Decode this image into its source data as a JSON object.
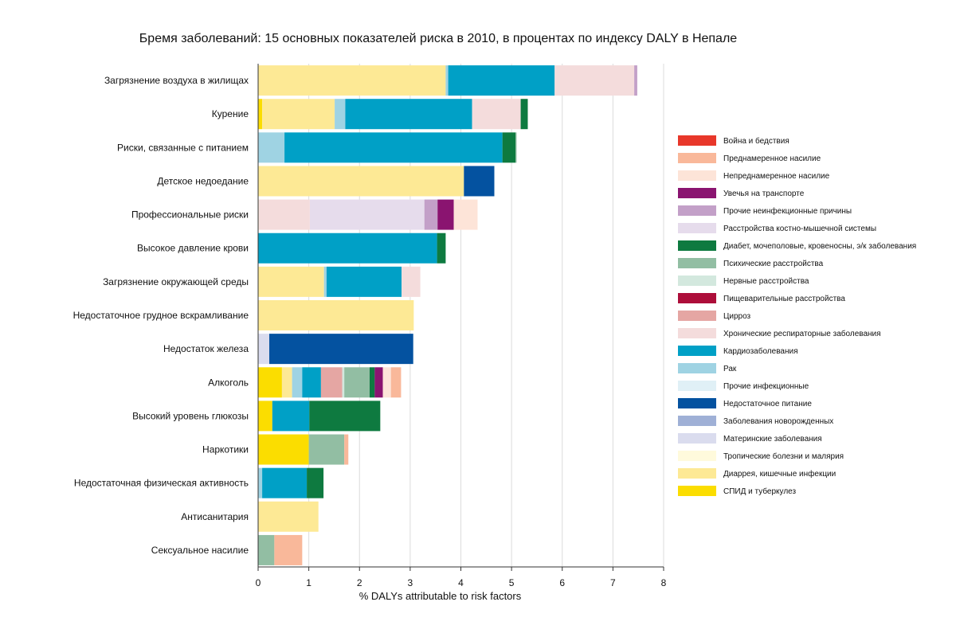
{
  "chart_data": {
    "type": "bar",
    "orientation": "horizontal",
    "stacked": true,
    "title": "Бремя заболеваний: 15 основных показателей риска в 2010, в процентах по индексу DALY в Непале",
    "xlabel": "% DALYs attributable to risk factors",
    "xlim": [
      0,
      8
    ],
    "xticks": [
      0,
      1,
      2,
      3,
      4,
      5,
      6,
      7,
      8
    ],
    "grid": "vertical",
    "legend_position": "right",
    "causes": [
      {
        "name": "Война и бедствия",
        "color": "#e8372a"
      },
      {
        "name": "Преднамеренное насилие",
        "color": "#f9b89a"
      },
      {
        "name": "Непреднамеренное насилие",
        "color": "#fde4d8"
      },
      {
        "name": "Увечья на транспорте",
        "color": "#8a1470"
      },
      {
        "name": "Прочие неинфекционные причины",
        "color": "#c3a0c8"
      },
      {
        "name": "Расстройства костно-мышечной системы",
        "color": "#e6dcec"
      },
      {
        "name": "Диабет, мочеполовые, кровеносны, э/к заболевания",
        "color": "#0e7a40"
      },
      {
        "name": "Психические расстройства",
        "color": "#92bea3"
      },
      {
        "name": "Нервные расстройства",
        "color": "#d3e8de"
      },
      {
        "name": "Пищеварительные расстройства",
        "color": "#ad0e3a"
      },
      {
        "name": "Цирроз",
        "color": "#e5a6a3"
      },
      {
        "name": "Хронические респираторные заболевания",
        "color": "#f4dcdc"
      },
      {
        "name": "Кардиозаболевания",
        "color": "#00a0c6"
      },
      {
        "name": "Рак",
        "color": "#9fd3e3"
      },
      {
        "name": "Прочие инфекционные",
        "color": "#e0f0f6"
      },
      {
        "name": "Недостаточное питание",
        "color": "#0452a0"
      },
      {
        "name": "Заболевания новорожденных",
        "color": "#9fb0d6"
      },
      {
        "name": "Материнские заболевания",
        "color": "#dadcee"
      },
      {
        "name": "Тропические болезни и малярия",
        "color": "#fffadc"
      },
      {
        "name": "Диаррея, кишечные инфекции",
        "color": "#fde995"
      },
      {
        "name": "СПИД и туберкулез",
        "color": "#fbdd00"
      }
    ],
    "risk_factors": [
      {
        "name": "Загрязнение воздуха в жилищах",
        "segments": [
          {
            "cause": "Диаррея, кишечные инфекции",
            "value": 3.7
          },
          {
            "cause": "Рак",
            "value": 0.05
          },
          {
            "cause": "Кардиозаболевания",
            "value": 2.1
          },
          {
            "cause": "Хронические респираторные заболевания",
            "value": 1.57
          },
          {
            "cause": "Прочие неинфекционные причины",
            "value": 0.06
          }
        ]
      },
      {
        "name": "Курение",
        "segments": [
          {
            "cause": "СПИД и туберкулез",
            "value": 0.08
          },
          {
            "cause": "Диаррея, кишечные инфекции",
            "value": 1.43
          },
          {
            "cause": "Рак",
            "value": 0.21
          },
          {
            "cause": "Кардиозаболевания",
            "value": 2.5
          },
          {
            "cause": "Хронические респираторные заболевания",
            "value": 0.96
          },
          {
            "cause": "Диабет, мочеполовые, кровеносны, э/к заболевания",
            "value": 0.14
          }
        ]
      },
      {
        "name": "Риски, связанные с питанием",
        "segments": [
          {
            "cause": "Рак",
            "value": 0.52
          },
          {
            "cause": "Кардиозаболевания",
            "value": 4.3
          },
          {
            "cause": "Диабет, мочеполовые, кровеносны, э/к заболевания",
            "value": 0.26
          },
          {
            "cause": "Психические расстройства",
            "value": 0.02
          }
        ]
      },
      {
        "name": "Детское недоедание",
        "segments": [
          {
            "cause": "Диаррея, кишечные инфекции",
            "value": 4.06
          },
          {
            "cause": "Недостаточное питание",
            "value": 0.6
          }
        ]
      },
      {
        "name": "Профессиональные риски",
        "segments": [
          {
            "cause": "Непреднамеренное насилие",
            "value": 0.02
          },
          {
            "cause": "Хронические респираторные заболевания",
            "value": 1.0
          },
          {
            "cause": "Расстройства костно-мышечной системы",
            "value": 2.26
          },
          {
            "cause": "Прочие неинфекционные причины",
            "value": 0.26
          },
          {
            "cause": "Увечья на транспорте",
            "value": 0.32
          },
          {
            "cause": "Непреднамеренное насилие",
            "value": 0.47
          }
        ]
      },
      {
        "name": "Высокое давление крови",
        "segments": [
          {
            "cause": "Кардиозаболевания",
            "value": 3.53
          },
          {
            "cause": "Диабет, мочеполовые, кровеносны, э/к заболевания",
            "value": 0.17
          }
        ]
      },
      {
        "name": "Загрязнение окружающей среды",
        "segments": [
          {
            "cause": "Диаррея, кишечные инфекции",
            "value": 1.3
          },
          {
            "cause": "Рак",
            "value": 0.05
          },
          {
            "cause": "Кардиозаболевания",
            "value": 1.48
          },
          {
            "cause": "Хронические респираторные заболевания",
            "value": 0.37
          }
        ]
      },
      {
        "name": "Недостаточное грудное вскрамливание",
        "segments": [
          {
            "cause": "Диаррея, кишечные инфекции",
            "value": 3.07
          }
        ]
      },
      {
        "name": "Недостаток железа",
        "segments": [
          {
            "cause": "Материнские заболевания",
            "value": 0.22
          },
          {
            "cause": "Недостаточное питание",
            "value": 2.84
          }
        ]
      },
      {
        "name": "Алкоголь",
        "segments": [
          {
            "cause": "СПИД и туберкулез",
            "value": 0.47
          },
          {
            "cause": "Диаррея, кишечные инфекции",
            "value": 0.2
          },
          {
            "cause": "Рак",
            "value": 0.2
          },
          {
            "cause": "Кардиозаболевания",
            "value": 0.37
          },
          {
            "cause": "Цирроз",
            "value": 0.42
          },
          {
            "cause": "Нервные расстройства",
            "value": 0.04
          },
          {
            "cause": "Психические расстройства",
            "value": 0.5
          },
          {
            "cause": "Диабет, мочеполовые, кровеносны, э/к заболевания",
            "value": 0.1
          },
          {
            "cause": "Увечья на транспорте",
            "value": 0.16
          },
          {
            "cause": "Непреднамеренное насилие",
            "value": 0.16
          },
          {
            "cause": "Преднамеренное насилие",
            "value": 0.2
          }
        ]
      },
      {
        "name": "Высокий уровень глюкозы",
        "segments": [
          {
            "cause": "СПИД и туберкулез",
            "value": 0.28
          },
          {
            "cause": "Кардиозаболевания",
            "value": 0.73
          },
          {
            "cause": "Диабет, мочеполовые, кровеносны, э/к заболевания",
            "value": 1.4
          }
        ]
      },
      {
        "name": "Наркотики",
        "segments": [
          {
            "cause": "СПИД и туберкулез",
            "value": 1.0
          },
          {
            "cause": "Психические расстройства",
            "value": 0.7
          },
          {
            "cause": "Преднамеренное насилие",
            "value": 0.08
          }
        ]
      },
      {
        "name": "Недостаточная физическая активность",
        "segments": [
          {
            "cause": "Рак",
            "value": 0.08
          },
          {
            "cause": "Кардиозаболевания",
            "value": 0.88
          },
          {
            "cause": "Диабет, мочеполовые, кровеносны, э/к заболевания",
            "value": 0.33
          }
        ]
      },
      {
        "name": "Антисанитария",
        "segments": [
          {
            "cause": "Диаррея, кишечные инфекции",
            "value": 1.19
          }
        ]
      },
      {
        "name": "Сексуальное насилие",
        "segments": [
          {
            "cause": "Психические расстройства",
            "value": 0.32
          },
          {
            "cause": "Преднамеренное насилие",
            "value": 0.55
          }
        ]
      }
    ]
  }
}
